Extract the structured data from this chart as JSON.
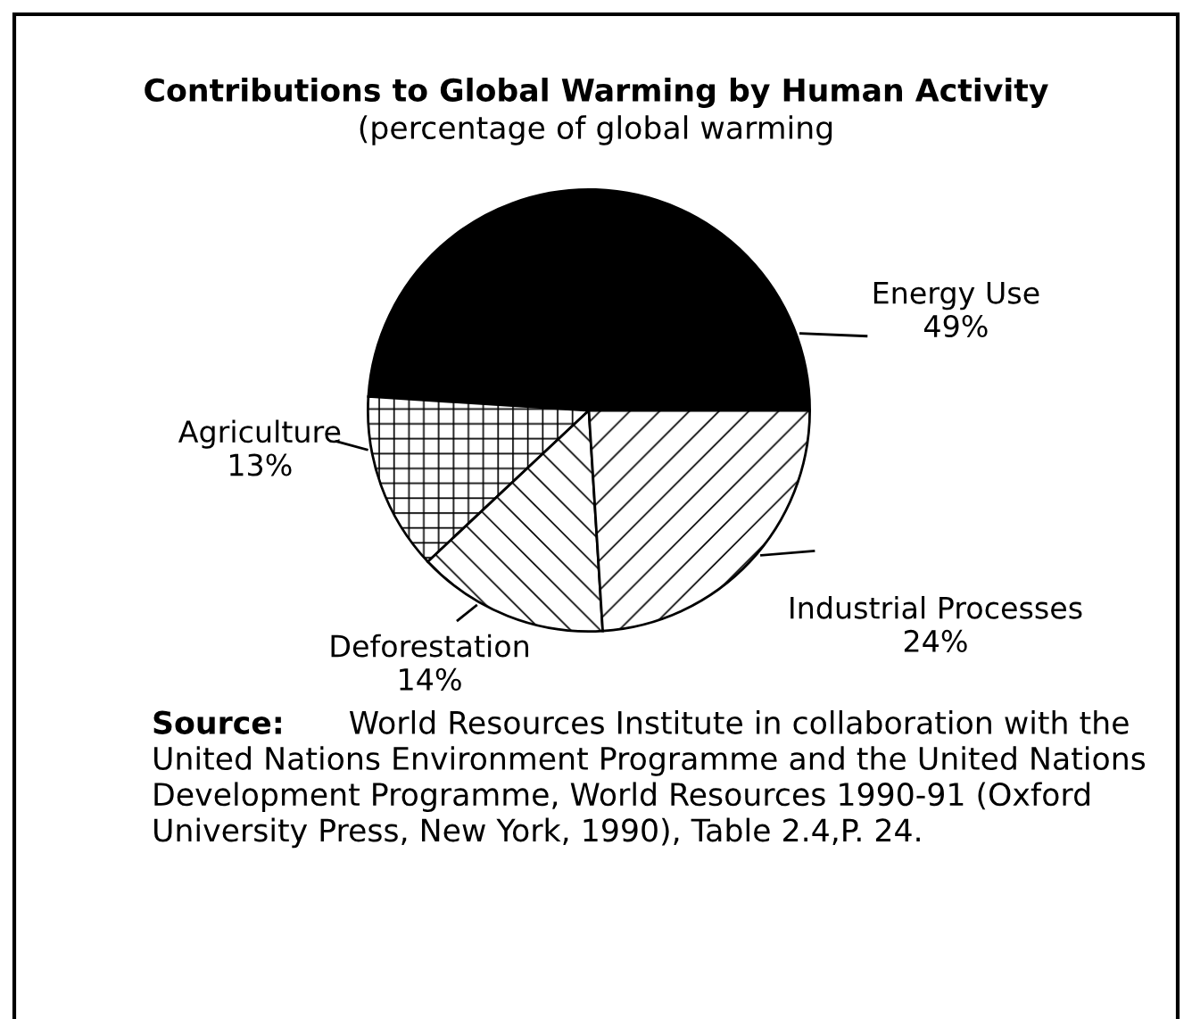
{
  "chart_data": {
    "type": "pie",
    "title": "Contributions to Global Warming by Human Activity",
    "subtitle": "(percentage of global warming",
    "categories": [
      "Energy Use",
      "Agriculture",
      "Deforestation",
      "Industrial Processes"
    ],
    "values": [
      49,
      13,
      14,
      24
    ],
    "value_labels": [
      "49%",
      "13%",
      "14%",
      "24%"
    ],
    "colors": [
      "#000000",
      "#ffffff",
      "#ffffff",
      "#ffffff"
    ],
    "legend": false,
    "annotations": [
      "Source: World Resources Institute in collaboration with the United Nations Environment Programme and the United Nations Development Programme, World Resources 1990-91 (Oxford University Press, New York, 1990), Table 2.4,P. 24."
    ]
  }
}
